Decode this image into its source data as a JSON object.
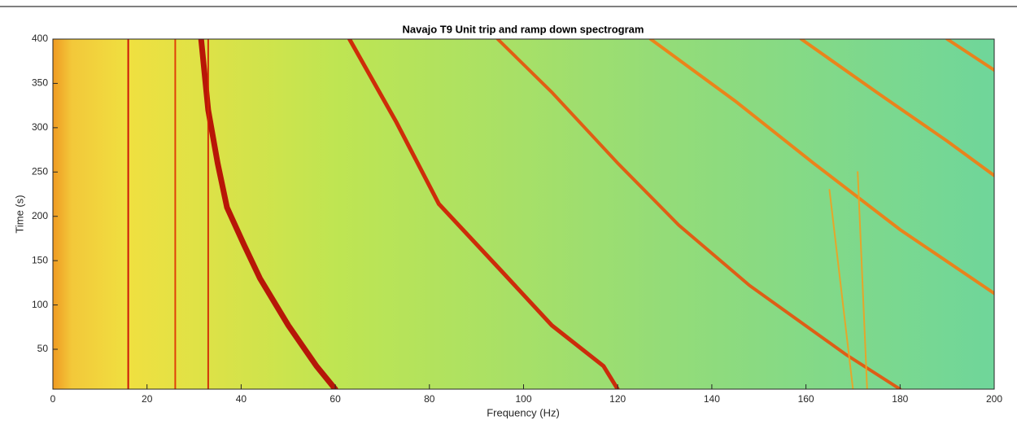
{
  "chart_data": {
    "type": "spectrogram",
    "title": "Navajo T9 Unit trip and ramp down spectrogram",
    "xlabel": "Frequency (Hz)",
    "ylabel": "Time (s)",
    "xlim": [
      0,
      200
    ],
    "ylim": [
      5,
      400
    ],
    "xticks": [
      0,
      20,
      40,
      60,
      80,
      100,
      120,
      140,
      160,
      180,
      200
    ],
    "yticks": [
      50,
      100,
      150,
      200,
      250,
      300,
      350,
      400
    ],
    "series": [
      {
        "color": "#b40000",
        "x": [
          60,
          56,
          50,
          44,
          40.6,
          37,
          35,
          33,
          31.5
        ],
        "y": [
          5,
          31,
          77,
          130,
          168,
          210,
          260,
          320,
          400
        ]
      },
      {
        "color": "#d01800",
        "x": [
          120,
          117,
          106,
          95,
          82,
          73,
          63
        ],
        "y": [
          5,
          31,
          77,
          140,
          214,
          306,
          400
        ]
      },
      {
        "color": "#e8500a",
        "x": [
          180,
          168.5,
          148,
          133,
          120,
          106,
          94.5
        ],
        "y": [
          5,
          44,
          122,
          190,
          260,
          340,
          400
        ]
      },
      {
        "color": "#f57a10",
        "x": [
          127,
          145,
          161.6,
          180,
          200
        ],
        "y": [
          400,
          330,
          260,
          185,
          113
        ]
      },
      {
        "color": "#f57a10",
        "x": [
          159,
          175,
          190,
          200
        ],
        "y": [
          400,
          340,
          285,
          246
        ]
      },
      {
        "color": "#f57a10",
        "x": [
          190,
          200
        ],
        "y": [
          400,
          365
        ]
      },
      {
        "color": "#c80000",
        "x": [
          16,
          16
        ],
        "y": [
          5,
          400
        ]
      },
      {
        "color": "#e03000",
        "x": [
          26,
          26
        ],
        "y": [
          5,
          400
        ]
      },
      {
        "color": "#d02000",
        "x": [
          33,
          33
        ],
        "y": [
          5,
          400
        ]
      },
      {
        "color": "#f0a020",
        "x": [
          165,
          170
        ],
        "y": [
          230,
          5
        ]
      },
      {
        "color": "#f0a020",
        "x": [
          171,
          173
        ],
        "y": [
          250,
          5
        ]
      }
    ]
  }
}
